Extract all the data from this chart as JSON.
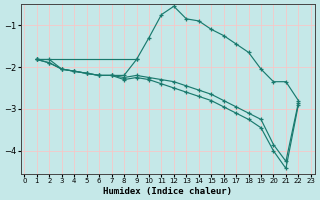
{
  "xlabel": "Humidex (Indice chaleur)",
  "bg_color": "#c5e8e8",
  "grid_color": "#f5c8c8",
  "line_color": "#1a7a6e",
  "xlim": [
    -0.3,
    23.3
  ],
  "ylim": [
    -4.55,
    -0.5
  ],
  "yticks": [
    -4,
    -3,
    -2,
    -1
  ],
  "xticks": [
    0,
    1,
    2,
    3,
    4,
    5,
    6,
    7,
    8,
    9,
    10,
    11,
    12,
    13,
    14,
    15,
    16,
    17,
    18,
    19,
    20,
    21,
    22,
    23
  ],
  "lines": [
    {
      "x": [
        1,
        2,
        3,
        4,
        5,
        6,
        7,
        8,
        9,
        10,
        11,
        12,
        13,
        14,
        15,
        16,
        17,
        18,
        19,
        20,
        21,
        22
      ],
      "y": [
        -1.82,
        -1.82,
        -2.05,
        -2.1,
        -2.15,
        -2.2,
        -2.2,
        -2.2,
        -1.82,
        -1.3,
        -0.75,
        -0.55,
        -0.85,
        -0.9,
        -1.1,
        -1.25,
        -1.45,
        -1.65,
        -2.05,
        -2.35,
        -2.35,
        -2.8
      ]
    },
    {
      "x": [
        1,
        2,
        3,
        4,
        5,
        6,
        7,
        8,
        9,
        10,
        11,
        12,
        13,
        14,
        15,
        16,
        17,
        18,
        19,
        20,
        21,
        22
      ],
      "y": [
        -1.82,
        -1.9,
        -2.05,
        -2.1,
        -2.15,
        -2.2,
        -2.2,
        -2.25,
        -2.2,
        -2.25,
        -2.3,
        -2.35,
        -2.45,
        -2.55,
        -2.65,
        -2.8,
        -2.95,
        -3.1,
        -3.25,
        -3.85,
        -4.25,
        -2.85
      ]
    },
    {
      "x": [
        1,
        2,
        3,
        4,
        5,
        6,
        7,
        8,
        9,
        10,
        11,
        12,
        13,
        14,
        15,
        16,
        17,
        18,
        19,
        20,
        21,
        22
      ],
      "y": [
        -1.82,
        -1.9,
        -2.05,
        -2.1,
        -2.15,
        -2.2,
        -2.2,
        -2.3,
        -2.25,
        -2.3,
        -2.4,
        -2.5,
        -2.6,
        -2.7,
        -2.8,
        -2.95,
        -3.1,
        -3.25,
        -3.45,
        -4.0,
        -4.42,
        -2.9
      ]
    },
    {
      "x": [
        1,
        9
      ],
      "y": [
        -1.82,
        -1.82
      ]
    }
  ]
}
